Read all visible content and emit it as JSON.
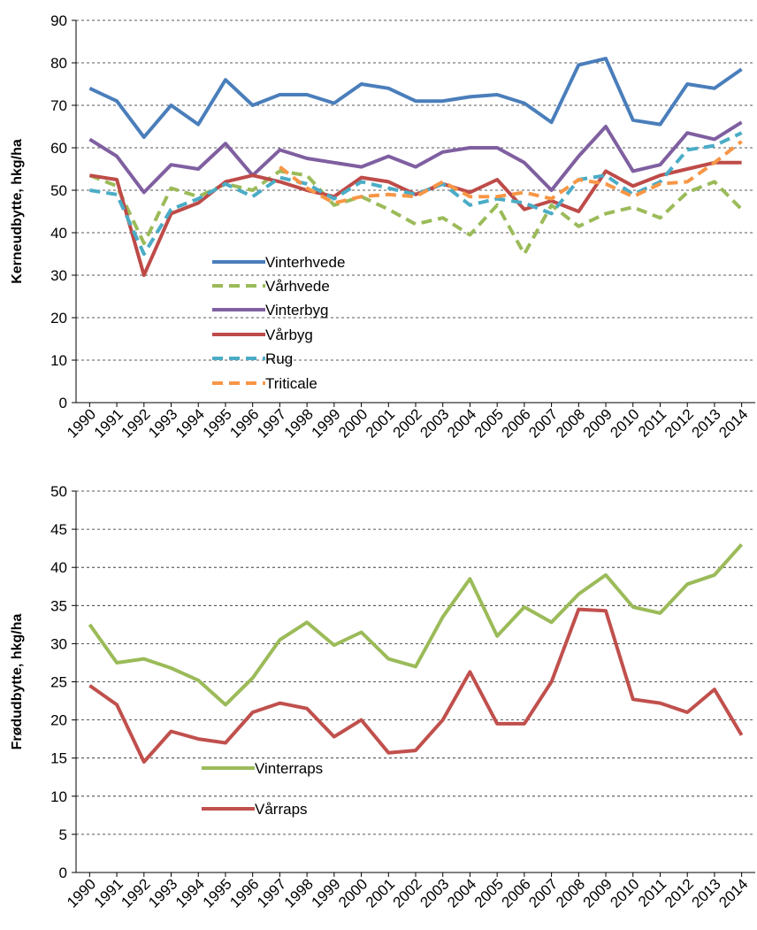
{
  "chart_data": [
    {
      "type": "line",
      "y_label": "Kerneudbytte, hkg/ha",
      "categories": [
        "1990",
        "1991",
        "1992",
        "1993",
        "1994",
        "1995",
        "1996",
        "1997",
        "1998",
        "1999",
        "2000",
        "2001",
        "2002",
        "2003",
        "2004",
        "2005",
        "2006",
        "2007",
        "2008",
        "2009",
        "2010",
        "2011",
        "2012",
        "2013",
        "2014"
      ],
      "ylim": [
        0,
        90
      ],
      "yticks": [
        0,
        10,
        20,
        30,
        40,
        50,
        60,
        70,
        80,
        90
      ],
      "grid": true,
      "series": [
        {
          "name": "Vinterhvede",
          "color": "#4a7ebb",
          "style": "solid",
          "values": [
            74,
            71,
            62.5,
            70,
            65.5,
            76,
            70,
            72.5,
            72.5,
            70.5,
            75,
            74,
            71,
            71,
            72,
            72.5,
            70.5,
            66,
            79.5,
            81,
            66.5,
            65.5,
            75,
            74,
            78.5
          ]
        },
        {
          "name": "Vårhvede",
          "color": "#9bbb59",
          "style": "dashed",
          "values": [
            53.5,
            51,
            37.5,
            50.5,
            48.5,
            51.5,
            50,
            54.5,
            53.5,
            46.5,
            48.5,
            45.5,
            42,
            43.5,
            39.5,
            46.5,
            35,
            46.5,
            41.5,
            44.5,
            46,
            43.5,
            49.5,
            52,
            45.5
          ]
        },
        {
          "name": "Vinterbyg",
          "color": "#7f5fa0",
          "style": "solid",
          "values": [
            62,
            58,
            49.5,
            56,
            55,
            61,
            53.5,
            59.5,
            57.5,
            56.5,
            55.5,
            58,
            55.5,
            59,
            60,
            60,
            56.5,
            50,
            58,
            65,
            54.5,
            56,
            63.5,
            62,
            66
          ]
        },
        {
          "name": "Vårbyg",
          "color": "#be4b48",
          "style": "solid",
          "values": [
            53.5,
            52.5,
            30,
            44.5,
            47,
            52,
            53.5,
            52,
            50,
            48.5,
            53,
            52,
            49,
            51.5,
            49.5,
            52.5,
            45.5,
            47.5,
            45,
            54.5,
            51,
            53.5,
            55,
            56.5,
            56.5
          ]
        },
        {
          "name": "Rug",
          "color": "#4bacc6",
          "style": "dashed",
          "values": [
            50,
            49,
            35,
            45.5,
            48,
            51.5,
            48.5,
            53,
            51.5,
            48,
            52,
            50.5,
            49,
            51.5,
            46.5,
            48,
            47,
            44.5,
            52.5,
            53.5,
            49,
            52,
            59.5,
            60.5,
            63.5
          ]
        },
        {
          "name": "Triticale",
          "color": "#f79646",
          "style": "dashed",
          "values": [
            null,
            null,
            null,
            null,
            null,
            null,
            null,
            55.5,
            50.5,
            47,
            48.5,
            49,
            48.5,
            52,
            48.5,
            48.5,
            49.5,
            48,
            52.5,
            51.5,
            48.5,
            51.5,
            52,
            56.5,
            61.5
          ]
        }
      ]
    },
    {
      "type": "line",
      "y_label": "Frødudbytte, hkg/ha",
      "categories": [
        "1990",
        "1991",
        "1992",
        "1993",
        "1994",
        "1995",
        "1996",
        "1997",
        "1998",
        "1999",
        "2000",
        "2001",
        "2002",
        "2003",
        "2004",
        "2005",
        "2006",
        "2007",
        "2008",
        "2009",
        "2010",
        "2011",
        "2012",
        "2013",
        "2014"
      ],
      "ylim": [
        0,
        50
      ],
      "yticks": [
        0,
        5,
        10,
        15,
        20,
        25,
        30,
        35,
        40,
        45,
        50
      ],
      "grid": true,
      "series": [
        {
          "name": "Vinterraps",
          "color": "#9bbb59",
          "style": "solid",
          "values": [
            32.5,
            27.5,
            28,
            26.8,
            25.2,
            22,
            25.5,
            30.5,
            32.8,
            29.8,
            31.5,
            28,
            27,
            33.5,
            38.5,
            31,
            34.8,
            32.8,
            36.5,
            39,
            34.8,
            34,
            37.8,
            39,
            43
          ]
        },
        {
          "name": "Vårraps",
          "color": "#c0504d",
          "style": "solid",
          "values": [
            24.5,
            22,
            14.5,
            18.5,
            17.5,
            17,
            21,
            22.2,
            21.5,
            17.8,
            20,
            15.7,
            16,
            20,
            26.3,
            19.5,
            19.5,
            25,
            34.5,
            34.3,
            22.7,
            22.2,
            21,
            24,
            18
          ]
        }
      ]
    }
  ]
}
